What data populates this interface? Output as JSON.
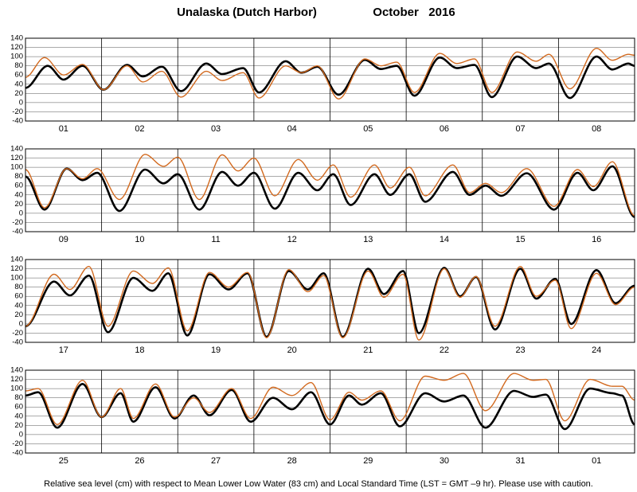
{
  "title": "Unalaska (Dutch Harbor)",
  "period": "October   2016",
  "note": "Relative sea level (cm) with respect to Mean Lower Low Water (83 cm) and Local Standard Time (LST = GMT –9 hr). Please use with caution.",
  "chart_data": [
    {
      "type": "line",
      "categories": [
        "01",
        "02",
        "03",
        "04",
        "05",
        "06",
        "07",
        "08"
      ],
      "xlim": [
        0,
        192
      ],
      "ylim": [
        -40,
        140
      ],
      "yticks": [
        140,
        120,
        100,
        80,
        60,
        40,
        20,
        0,
        -20,
        -40
      ],
      "grid": true,
      "series": [
        {
          "color": "#000000",
          "x": [
            0,
            7,
            12,
            18,
            24.6,
            32,
            37,
            43,
            49,
            57,
            62,
            68.6,
            73.6,
            82,
            87,
            92,
            98.7,
            107,
            112,
            117,
            122.6,
            130.6,
            136,
            141.5,
            147,
            155,
            161,
            165,
            171.6,
            180,
            185,
            190,
            192
          ],
          "values": [
            32,
            80,
            50,
            80,
            28,
            82,
            57,
            78,
            25,
            85,
            62,
            75,
            22,
            90,
            65,
            78,
            17,
            93,
            73,
            80,
            15,
            98,
            75,
            82,
            12,
            100,
            75,
            85,
            10,
            100,
            72,
            85,
            80
          ]
        },
        {
          "color": "#d2691e",
          "x": [
            0,
            6,
            12,
            18,
            24.6,
            32,
            37,
            43,
            49,
            57,
            62,
            68.6,
            73.6,
            82,
            87,
            92,
            98.7,
            107,
            112,
            117,
            122.6,
            130.6,
            136,
            141.5,
            147,
            155,
            161,
            165,
            171.6,
            180,
            185,
            190,
            192
          ],
          "values": [
            55,
            98,
            60,
            83,
            28,
            80,
            45,
            68,
            12,
            68,
            48,
            65,
            10,
            80,
            65,
            80,
            8,
            95,
            80,
            88,
            22,
            107,
            85,
            95,
            22,
            110,
            90,
            105,
            30,
            118,
            92,
            105,
            103
          ]
        }
      ]
    },
    {
      "type": "line",
      "categories": [
        "09",
        "10",
        "11",
        "12",
        "13",
        "14",
        "15",
        "16"
      ],
      "xlim": [
        0,
        192
      ],
      "ylim": [
        -40,
        140
      ],
      "yticks": [
        140,
        120,
        100,
        80,
        60,
        40,
        20,
        0,
        -20,
        -40
      ],
      "grid": true,
      "series": [
        {
          "color": "#000000",
          "x": [
            0,
            6,
            13,
            18,
            22.6,
            29.6,
            37.7,
            43.5,
            48,
            54.8,
            62,
            67,
            72,
            78.6,
            86,
            92,
            97,
            102.5,
            110,
            115,
            121,
            126,
            134.7,
            140,
            145,
            150,
            158,
            166.6,
            174,
            179,
            185,
            192
          ],
          "values": [
            80,
            8,
            97,
            72,
            88,
            5,
            95,
            65,
            85,
            8,
            90,
            60,
            88,
            10,
            88,
            50,
            85,
            18,
            85,
            40,
            85,
            25,
            90,
            40,
            60,
            38,
            87,
            8,
            88,
            50,
            102,
            -8
          ]
        },
        {
          "color": "#d2691e",
          "x": [
            0,
            6,
            13,
            18,
            22.6,
            29.6,
            37.7,
            43.5,
            48,
            54.8,
            62,
            67,
            72,
            78.6,
            86,
            92,
            97,
            102.5,
            110,
            115,
            121,
            126,
            134.7,
            140,
            145,
            150,
            158,
            166.6,
            174,
            179,
            185,
            192
          ],
          "values": [
            95,
            12,
            97,
            75,
            97,
            30,
            128,
            102,
            122,
            30,
            127,
            92,
            120,
            38,
            117,
            72,
            105,
            35,
            105,
            55,
            100,
            38,
            105,
            45,
            65,
            45,
            97,
            15,
            95,
            58,
            112,
            -5
          ]
        }
      ]
    },
    {
      "type": "line",
      "categories": [
        "17",
        "18",
        "19",
        "20",
        "21",
        "22",
        "23",
        "24"
      ],
      "xlim": [
        0,
        192
      ],
      "ylim": [
        -40,
        140
      ],
      "yticks": [
        140,
        120,
        100,
        80,
        60,
        40,
        20,
        0,
        -20,
        -40
      ],
      "grid": true,
      "series": [
        {
          "color": "#000000",
          "x": [
            0,
            9,
            14,
            20,
            26,
            34,
            40,
            45,
            51,
            58,
            64,
            70,
            76,
            83,
            89,
            94,
            100,
            108,
            113,
            119,
            124,
            132,
            137,
            142,
            148,
            156,
            161,
            167,
            172,
            180,
            186,
            192
          ],
          "values": [
            -5,
            92,
            62,
            105,
            -18,
            100,
            72,
            110,
            -25,
            108,
            75,
            110,
            -28,
            115,
            75,
            110,
            -28,
            120,
            65,
            115,
            -20,
            122,
            60,
            102,
            -12,
            120,
            55,
            98,
            0,
            117,
            45,
            83
          ]
        },
        {
          "color": "#d2691e",
          "x": [
            0,
            9,
            14,
            20,
            26,
            34,
            40,
            45,
            51,
            58,
            64,
            70,
            76,
            83,
            89,
            94,
            100,
            108,
            113,
            119,
            124,
            132,
            137,
            142,
            148,
            156,
            161,
            167,
            172,
            180,
            186,
            192
          ],
          "values": [
            -5,
            108,
            75,
            125,
            -5,
            115,
            88,
            122,
            -15,
            112,
            80,
            112,
            -30,
            118,
            70,
            105,
            -30,
            115,
            58,
            108,
            -35,
            120,
            58,
            103,
            -5,
            125,
            60,
            95,
            -10,
            110,
            42,
            80
          ]
        }
      ]
    },
    {
      "type": "line",
      "categories": [
        "25",
        "26",
        "27",
        "28",
        "29",
        "30",
        "31",
        "01"
      ],
      "xlim": [
        0,
        192
      ],
      "ylim": [
        -40,
        140
      ],
      "yticks": [
        140,
        120,
        100,
        80,
        60,
        40,
        20,
        0,
        -20,
        -40
      ],
      "grid": true,
      "series": [
        {
          "color": "#000000",
          "x": [
            0,
            4,
            10,
            18,
            24,
            30,
            34,
            41,
            47,
            53,
            58,
            65,
            71,
            78,
            84,
            90,
            96,
            102,
            106,
            112,
            118,
            126,
            132,
            138,
            145,
            154,
            160,
            164,
            170,
            178,
            185,
            188,
            192
          ],
          "values": [
            85,
            92,
            15,
            110,
            38,
            90,
            28,
            103,
            35,
            85,
            42,
            97,
            28,
            80,
            55,
            92,
            22,
            85,
            65,
            90,
            18,
            90,
            72,
            85,
            15,
            95,
            82,
            87,
            12,
            100,
            90,
            85,
            22
          ]
        },
        {
          "color": "#d2691e",
          "x": [
            0,
            4,
            10,
            18,
            24,
            30,
            34,
            41,
            47,
            53,
            58,
            65,
            71,
            78,
            84,
            90,
            96,
            102,
            106,
            112,
            118,
            126,
            132,
            138,
            145,
            154,
            160,
            164,
            170,
            178,
            185,
            188,
            192
          ],
          "values": [
            95,
            100,
            22,
            118,
            38,
            100,
            35,
            110,
            38,
            80,
            48,
            100,
            35,
            103,
            85,
            113,
            32,
            92,
            75,
            95,
            30,
            127,
            118,
            133,
            52,
            133,
            118,
            120,
            30,
            120,
            105,
            105,
            75
          ]
        }
      ]
    }
  ]
}
